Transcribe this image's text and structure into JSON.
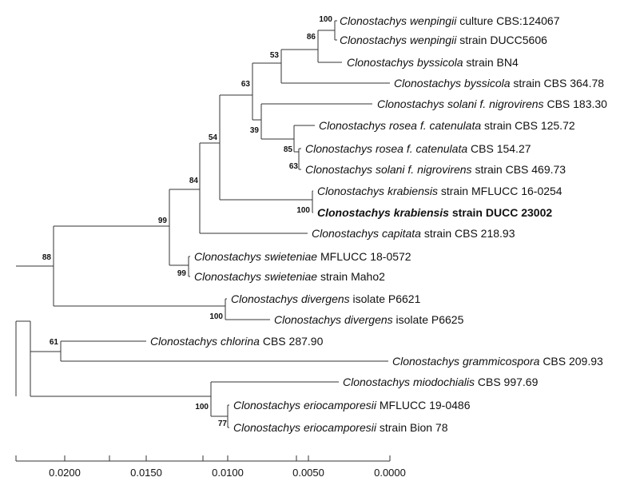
{
  "tree": {
    "taxa": [
      {
        "id": "wenpingii_cbs",
        "genus": "Clonostachys",
        "species": "wenpingii",
        "rest": "culture CBS:124067",
        "highlight": false
      },
      {
        "id": "wenpingii_ducc",
        "genus": "Clonostachys",
        "species": "wenpingii",
        "rest": "strain DUCC5606",
        "highlight": false
      },
      {
        "id": "byssicola_bn4",
        "genus": "Clonostachys",
        "species": "byssicola",
        "rest": "strain BN4",
        "highlight": false
      },
      {
        "id": "byssicola_cbs",
        "genus": "Clonostachys",
        "species": "byssicola",
        "rest": "strain CBS 364.78",
        "highlight": false
      },
      {
        "id": "solani_cbs183",
        "genus": "Clonostachys",
        "species": "solani f. nigrovirens",
        "rest": "CBS 183.30",
        "highlight": false
      },
      {
        "id": "rosea_cbs125",
        "genus": "Clonostachys",
        "species": "rosea f. catenulata",
        "rest": "strain CBS 125.72",
        "highlight": false
      },
      {
        "id": "rosea_cbs154",
        "genus": "Clonostachys",
        "species": "rosea f. catenulata",
        "rest": "CBS 154.27",
        "highlight": false
      },
      {
        "id": "solani_cbs469",
        "genus": "Clonostachys",
        "species": "solani f. nigrovirens",
        "rest": "strain CBS 469.73",
        "highlight": false
      },
      {
        "id": "krabiensis_mfl",
        "genus": "Clonostachys",
        "species": "krabiensis",
        "rest": "strain MFLUCC 16-0254",
        "highlight": false
      },
      {
        "id": "krabiensis_ducc",
        "genus": "Clonostachys",
        "species": "krabiensis",
        "rest": "strain DUCC 23002",
        "highlight": true
      },
      {
        "id": "capitata",
        "genus": "Clonostachys",
        "species": "capitata",
        "rest": "strain CBS 218.93",
        "highlight": false
      },
      {
        "id": "swieteniae_mfl",
        "genus": "Clonostachys",
        "species": "swieteniae",
        "rest": "MFLUCC 18-0572",
        "highlight": false
      },
      {
        "id": "swieteniae_maho",
        "genus": "Clonostachys",
        "species": "swieteniae",
        "rest": "strain Maho2",
        "highlight": false
      },
      {
        "id": "divergens_6621",
        "genus": "Clonostachys",
        "species": "divergens",
        "rest": "isolate P6621",
        "highlight": false
      },
      {
        "id": "divergens_6625",
        "genus": "Clonostachys",
        "species": "divergens",
        "rest": "isolate P6625",
        "highlight": false
      },
      {
        "id": "chlorina",
        "genus": "Clonostachys",
        "species": "chlorina",
        "rest": "CBS 287.90",
        "highlight": false
      },
      {
        "id": "grammicospora",
        "genus": "Clonostachys",
        "species": "grammicospora",
        "rest": "CBS 209.93",
        "highlight": false
      },
      {
        "id": "miodochialis",
        "genus": "Clonostachys",
        "species": "miodochialis",
        "rest": "CBS 997.69",
        "highlight": false
      },
      {
        "id": "erio_mfl",
        "genus": "Clonostachys",
        "species": "eriocamporesii",
        "rest": "MFLUCC 19-0486",
        "highlight": false
      },
      {
        "id": "erio_bion",
        "genus": "Clonostachys",
        "species": "eriocamporesii",
        "rest": "strain Bion 78",
        "highlight": false
      }
    ],
    "bootstrap": {
      "wenpingii": "100",
      "wenpingii_byssicola": "86",
      "clade_53": "53",
      "clade_63": "63",
      "solani_rosea": "39",
      "rosea_pair": "85",
      "rosea_solani": "63",
      "clade_54": "54",
      "krabiensis": "100",
      "clade_84": "84",
      "clade_99": "99",
      "swieteniae": "99",
      "clade_88": "88",
      "divergens": "100",
      "chlorina_gram": "61",
      "miodo_erio": "100",
      "eriocamporesii": "77"
    }
  },
  "scale_axis": {
    "ticks": [
      "0.0200",
      "0.0150",
      "0.0100",
      "0.0050",
      "0.0000"
    ]
  }
}
